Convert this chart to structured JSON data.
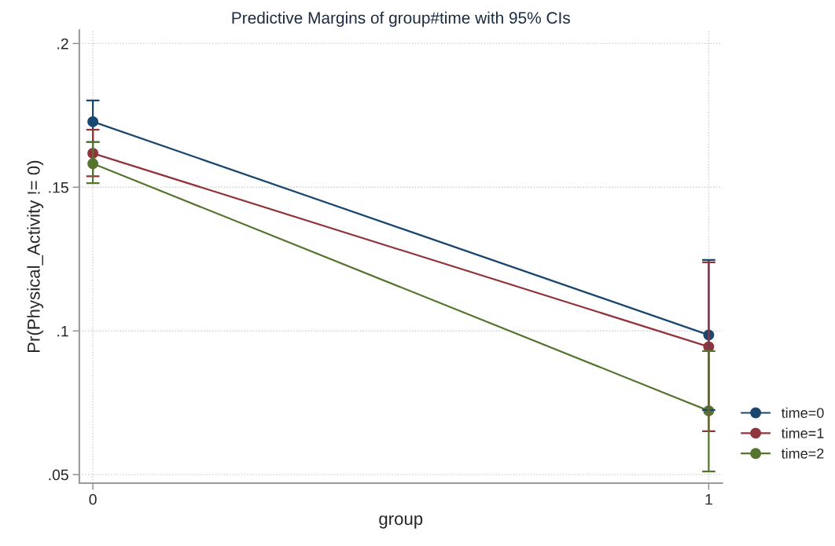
{
  "chart_data": {
    "type": "line",
    "title": "Predictive Margins of group#time with 95% CIs",
    "xlabel": "group",
    "ylabel": "Pr(Physical_Activity != 0)",
    "x": [
      0,
      1
    ],
    "xlim": [
      -0.022,
      1.022
    ],
    "xticks": [
      0,
      1
    ],
    "ylim": [
      0.047,
      0.2047
    ],
    "yticks": [
      {
        "value": 0.05,
        "label": ".05"
      },
      {
        "value": 0.1,
        "label": ".1"
      },
      {
        "value": 0.15,
        "label": ".15"
      },
      {
        "value": 0.2,
        "label": ".2"
      }
    ],
    "series": [
      {
        "name": "time=0",
        "color": "#1a476f",
        "values": [
          0.1728,
          0.0986
        ],
        "errors": [
          [
            0.1657,
            0.1802
          ],
          [
            0.0725,
            0.1247
          ]
        ]
      },
      {
        "name": "time=1",
        "color": "#90353b",
        "values": [
          0.1618,
          0.0945
        ],
        "errors": [
          [
            0.1538,
            0.17
          ],
          [
            0.0651,
            0.1239
          ]
        ]
      },
      {
        "name": "time=2",
        "color": "#55752f",
        "values": [
          0.1582,
          0.0722
        ],
        "errors": [
          [
            0.1514,
            0.1657
          ],
          [
            0.0511,
            0.093
          ]
        ]
      }
    ],
    "grid": true,
    "legend": "right",
    "marker": "circle",
    "line_style": "solid"
  }
}
